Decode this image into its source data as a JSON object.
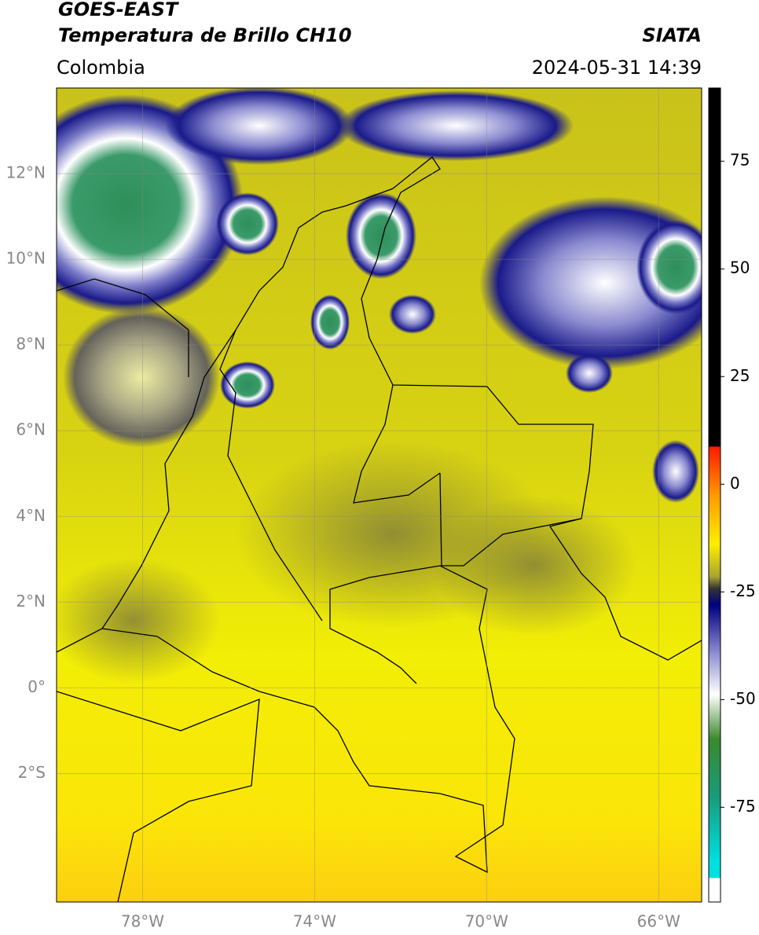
{
  "header": {
    "title": "GOES-EAST",
    "subtitle": "Temperatura de Brillo CH10",
    "region": "Colombia",
    "source": "SIATA",
    "timestamp": "2024-05-31 14:39"
  },
  "map": {
    "lon_range": [
      -80,
      -65
    ],
    "lat_range": [
      -5,
      14
    ],
    "lat_ticks": [
      {
        "value": 12,
        "label": "12°N"
      },
      {
        "value": 10,
        "label": "10°N"
      },
      {
        "value": 8,
        "label": "8°N"
      },
      {
        "value": 6,
        "label": "6°N"
      },
      {
        "value": 4,
        "label": "4°N"
      },
      {
        "value": 2,
        "label": "2°N"
      },
      {
        "value": 0,
        "label": "0°"
      },
      {
        "value": -2,
        "label": "2°S"
      }
    ],
    "lon_ticks": [
      {
        "value": -78,
        "label": "78°W"
      },
      {
        "value": -74,
        "label": "74°W"
      },
      {
        "value": -70,
        "label": "70°W"
      },
      {
        "value": -66,
        "label": "66°W"
      }
    ]
  },
  "colorbar": {
    "range": [
      -97,
      92
    ],
    "ticks": [
      75,
      50,
      25,
      0,
      -25,
      -50,
      -75
    ]
  }
}
